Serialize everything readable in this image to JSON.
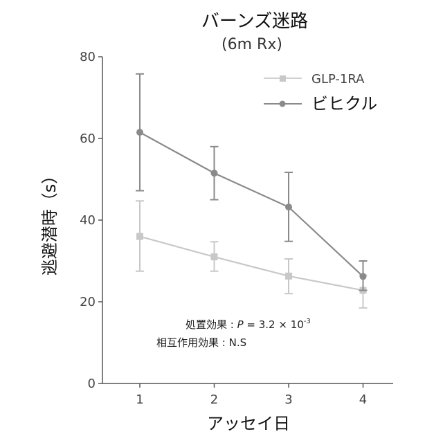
{
  "chart_data": {
    "type": "line",
    "title": "バーンズ迷路",
    "subtitle": "(6m Rx)",
    "xlabel": "アッセイ日",
    "ylabel": "逃避潜時（s）",
    "categories": [
      "1",
      "2",
      "3",
      "4"
    ],
    "x": [
      1,
      2,
      3,
      4
    ],
    "xlim": [
      0.5,
      4.5
    ],
    "ylim": [
      0,
      80
    ],
    "yticks": [
      0,
      20,
      40,
      60,
      80
    ],
    "yticklabels": [
      "0",
      "20",
      "40",
      "60",
      "80"
    ],
    "grid": false,
    "legend": "top-right",
    "series": [
      {
        "name": "GLP-1RA",
        "marker": "square",
        "color": "#c8c8c8",
        "values": [
          36,
          31,
          26.3,
          22.8
        ],
        "error_low": [
          27.5,
          27.5,
          22,
          18.5
        ],
        "error_high": [
          44.7,
          34.7,
          30.5,
          26.5
        ]
      },
      {
        "name": "ビヒクル",
        "marker": "circle",
        "color": "#8a8a8a",
        "values": [
          61.5,
          51.5,
          43.2,
          26.2
        ],
        "error_low": [
          47.2,
          45,
          34.8,
          22.8
        ],
        "error_high": [
          75.8,
          58,
          51.7,
          30
        ]
      }
    ],
    "annotations": [
      {
        "prefix": "処置効果 : ",
        "p_symbol": "P",
        "middle": " = 3.2 × 10",
        "exponent": "-3"
      },
      {
        "prefix": "相互作用効果 : ",
        "text": "N.S"
      }
    ]
  }
}
